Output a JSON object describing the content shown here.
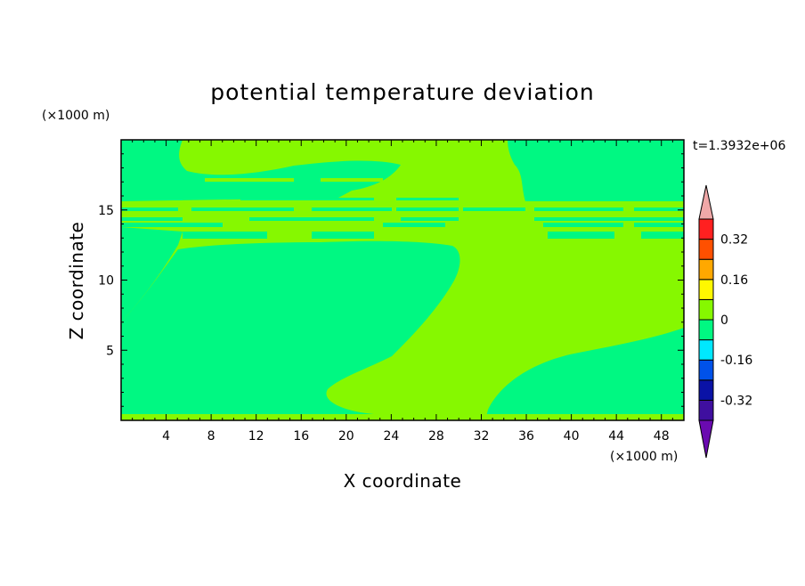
{
  "chart_data": {
    "type": "heatmap",
    "title": "potential temperature deviation",
    "xlabel": "X coordinate",
    "ylabel": "Z coordinate",
    "x_unit": "(×1000 m)",
    "y_unit": "(×1000 m)",
    "time_label": "t=1.3932e+06",
    "xlim": [
      0,
      50
    ],
    "ylim": [
      0,
      20
    ],
    "x_ticks": [
      4,
      8,
      12,
      16,
      20,
      24,
      28,
      32,
      36,
      40,
      44,
      48
    ],
    "y_ticks": [
      5,
      10,
      15
    ],
    "colorbar": {
      "levels": [
        -0.4,
        -0.32,
        -0.24,
        -0.16,
        -0.08,
        0,
        0.08,
        0.16,
        0.24,
        0.32,
        0.4
      ],
      "colors": [
        "#3f0f9f",
        "#0a12a6",
        "#0052ea",
        "#00e8ff",
        "#00f882",
        "#86f800",
        "#fff800",
        "#ffa800",
        "#ff5000",
        "#ff2020"
      ],
      "under_color": "#6a0ab0",
      "over_color": "#f0a8a8",
      "labels": [
        "-0.32",
        "-0.16",
        "0",
        "0.16",
        "0.32"
      ],
      "label_values": [
        -0.32,
        -0.16,
        0,
        0.16,
        0.32
      ]
    },
    "colors": {
      "slightly_negative": "#00f882",
      "slightly_positive": "#86f800"
    }
  }
}
